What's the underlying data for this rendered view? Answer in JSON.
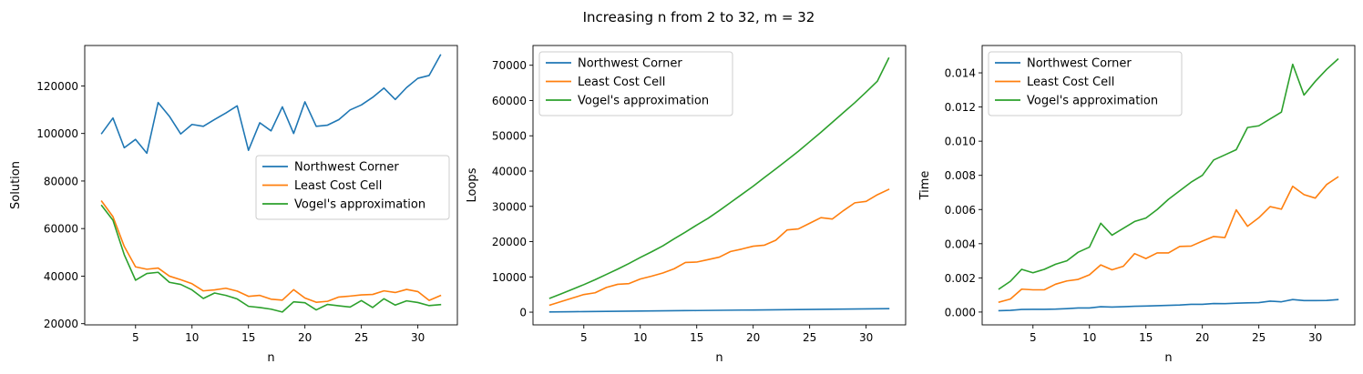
{
  "figure": {
    "title": "Increasing n from 2 to 32, m = 32"
  },
  "chart_data": [
    {
      "type": "line",
      "title": "",
      "xlabel": "n",
      "ylabel": "Solution",
      "xlim": [
        0.5,
        33.5
      ],
      "ylim": [
        19500,
        137000
      ],
      "xticks": [
        5,
        10,
        15,
        20,
        25,
        30
      ],
      "yticks": [
        20000,
        40000,
        60000,
        80000,
        100000,
        120000
      ],
      "ytick_labels": [
        "20000",
        "40000",
        "60000",
        "80000",
        "100000",
        "120000"
      ],
      "legend_position": "center-right",
      "x": [
        2,
        3,
        4,
        5,
        6,
        7,
        8,
        9,
        10,
        11,
        12,
        13,
        14,
        15,
        16,
        17,
        18,
        19,
        20,
        21,
        22,
        23,
        24,
        25,
        26,
        27,
        28,
        29,
        30,
        31,
        32
      ],
      "series": [
        {
          "name": "Northwest Corner",
          "color": "#1f77b4",
          "values": [
            100000,
            106500,
            94000,
            97500,
            91700,
            113000,
            107200,
            99800,
            103800,
            103000,
            105900,
            108600,
            111600,
            92900,
            104500,
            101100,
            111200,
            100000,
            113300,
            103000,
            103500,
            105800,
            109900,
            112000,
            115200,
            119100,
            114300,
            119300,
            123200,
            124400,
            133000
          ]
        },
        {
          "name": "Least Cost Cell",
          "color": "#ff7f0e",
          "values": [
            71500,
            65000,
            52500,
            43900,
            42900,
            43400,
            40000,
            38500,
            36800,
            33800,
            34200,
            34900,
            33700,
            31500,
            31900,
            30300,
            29900,
            34300,
            30800,
            29000,
            29400,
            31200,
            31600,
            32100,
            32300,
            33800,
            33100,
            34400,
            33500,
            29800,
            31800
          ]
        },
        {
          "name": "Vogel's approximation",
          "color": "#2ca02c",
          "values": [
            69700,
            63500,
            49000,
            38300,
            41100,
            41600,
            37400,
            36500,
            34200,
            30600,
            32900,
            31900,
            30400,
            27300,
            26800,
            26100,
            24900,
            29200,
            28800,
            25800,
            28100,
            27500,
            27000,
            29700,
            26800,
            30500,
            27800,
            29600,
            28900,
            27600,
            28000
          ]
        }
      ]
    },
    {
      "type": "line",
      "title": "",
      "xlabel": "n",
      "ylabel": "Loops",
      "xlim": [
        0.5,
        33.5
      ],
      "ylim": [
        -3600,
        75600
      ],
      "xticks": [
        5,
        10,
        15,
        20,
        25,
        30
      ],
      "yticks": [
        0,
        10000,
        20000,
        30000,
        40000,
        50000,
        60000,
        70000
      ],
      "ytick_labels": [
        "0",
        "10000",
        "20000",
        "30000",
        "40000",
        "50000",
        "60000",
        "70000"
      ],
      "legend_position": "upper-left",
      "x": [
        2,
        3,
        4,
        5,
        6,
        7,
        8,
        9,
        10,
        11,
        12,
        13,
        14,
        15,
        16,
        17,
        18,
        19,
        20,
        21,
        22,
        23,
        24,
        25,
        26,
        27,
        28,
        29,
        30,
        31,
        32
      ],
      "series": [
        {
          "name": "Northwest Corner",
          "color": "#1f77b4",
          "values": [
            62,
            93,
            124,
            155,
            186,
            217,
            248,
            279,
            310,
            341,
            372,
            403,
            434,
            465,
            496,
            527,
            558,
            589,
            620,
            651,
            682,
            713,
            744,
            775,
            806,
            837,
            868,
            899,
            930,
            961,
            992
          ]
        },
        {
          "name": "Least Cost Cell",
          "color": "#ff7f0e",
          "values": [
            2000,
            3000,
            4000,
            5000,
            5500,
            7000,
            7900,
            8100,
            9400,
            10200,
            11100,
            12300,
            14100,
            14200,
            14900,
            15600,
            17200,
            17900,
            18700,
            19000,
            20400,
            23300,
            23600,
            25200,
            26800,
            26400,
            28800,
            31000,
            31400,
            33300,
            34800
          ]
        },
        {
          "name": "Vogel's approximation",
          "color": "#2ca02c",
          "values": [
            3960,
            5200,
            6500,
            7800,
            9200,
            10700,
            12200,
            13800,
            15500,
            17100,
            18800,
            20800,
            22700,
            24700,
            26600,
            28800,
            31100,
            33400,
            35700,
            38200,
            40600,
            43100,
            45600,
            48300,
            51000,
            53800,
            56600,
            59400,
            62400,
            65500,
            72000
          ]
        }
      ]
    },
    {
      "type": "line",
      "title": "",
      "xlabel": "n",
      "ylabel": "Time",
      "xlim": [
        0.5,
        33.5
      ],
      "ylim": [
        -0.00075,
        0.0156
      ],
      "xticks": [
        5,
        10,
        15,
        20,
        25,
        30
      ],
      "yticks": [
        0,
        0.002,
        0.004,
        0.006,
        0.008,
        0.01,
        0.012,
        0.014
      ],
      "ytick_labels": [
        "0.000",
        "0.002",
        "0.004",
        "0.006",
        "0.008",
        "0.010",
        "0.012",
        "0.014"
      ],
      "legend_position": "upper-left",
      "x": [
        2,
        3,
        4,
        5,
        6,
        7,
        8,
        9,
        10,
        11,
        12,
        13,
        14,
        15,
        16,
        17,
        18,
        19,
        20,
        21,
        22,
        23,
        24,
        25,
        26,
        27,
        28,
        29,
        30,
        31,
        32
      ],
      "series": [
        {
          "name": "Northwest Corner",
          "color": "#1f77b4",
          "values": [
            8e-05,
            0.0001,
            0.00015,
            0.00016,
            0.00016,
            0.00017,
            0.0002,
            0.00024,
            0.00024,
            0.00031,
            0.00029,
            0.00031,
            0.00034,
            0.00035,
            0.00037,
            0.00039,
            0.00041,
            0.00045,
            0.00045,
            0.0005,
            0.00049,
            0.00052,
            0.00054,
            0.00055,
            0.00064,
            0.0006,
            0.00073,
            0.00067,
            0.00067,
            0.00068,
            0.00073
          ]
        },
        {
          "name": "Least Cost Cell",
          "color": "#ff7f0e",
          "values": [
            0.00058,
            0.00076,
            0.00134,
            0.0013,
            0.0013,
            0.00163,
            0.00182,
            0.00191,
            0.00218,
            0.00276,
            0.00247,
            0.00268,
            0.00342,
            0.00313,
            0.00346,
            0.00346,
            0.00384,
            0.00386,
            0.00415,
            0.00442,
            0.00436,
            0.00598,
            0.00502,
            0.00552,
            0.00617,
            0.00602,
            0.00736,
            0.00687,
            0.00667,
            0.00746,
            0.0079
          ]
        },
        {
          "name": "Vogel's approximation",
          "color": "#2ca02c",
          "values": [
            0.00135,
            0.0018,
            0.0025,
            0.0023,
            0.0025,
            0.0028,
            0.003,
            0.0035,
            0.0038,
            0.0052,
            0.0045,
            0.0049,
            0.0053,
            0.0055,
            0.006,
            0.0066,
            0.0071,
            0.0076,
            0.008,
            0.0089,
            0.0092,
            0.0095,
            0.0108,
            0.0109,
            0.0113,
            0.0117,
            0.0145,
            0.0127,
            0.0135,
            0.0142,
            0.0148
          ]
        }
      ]
    }
  ]
}
